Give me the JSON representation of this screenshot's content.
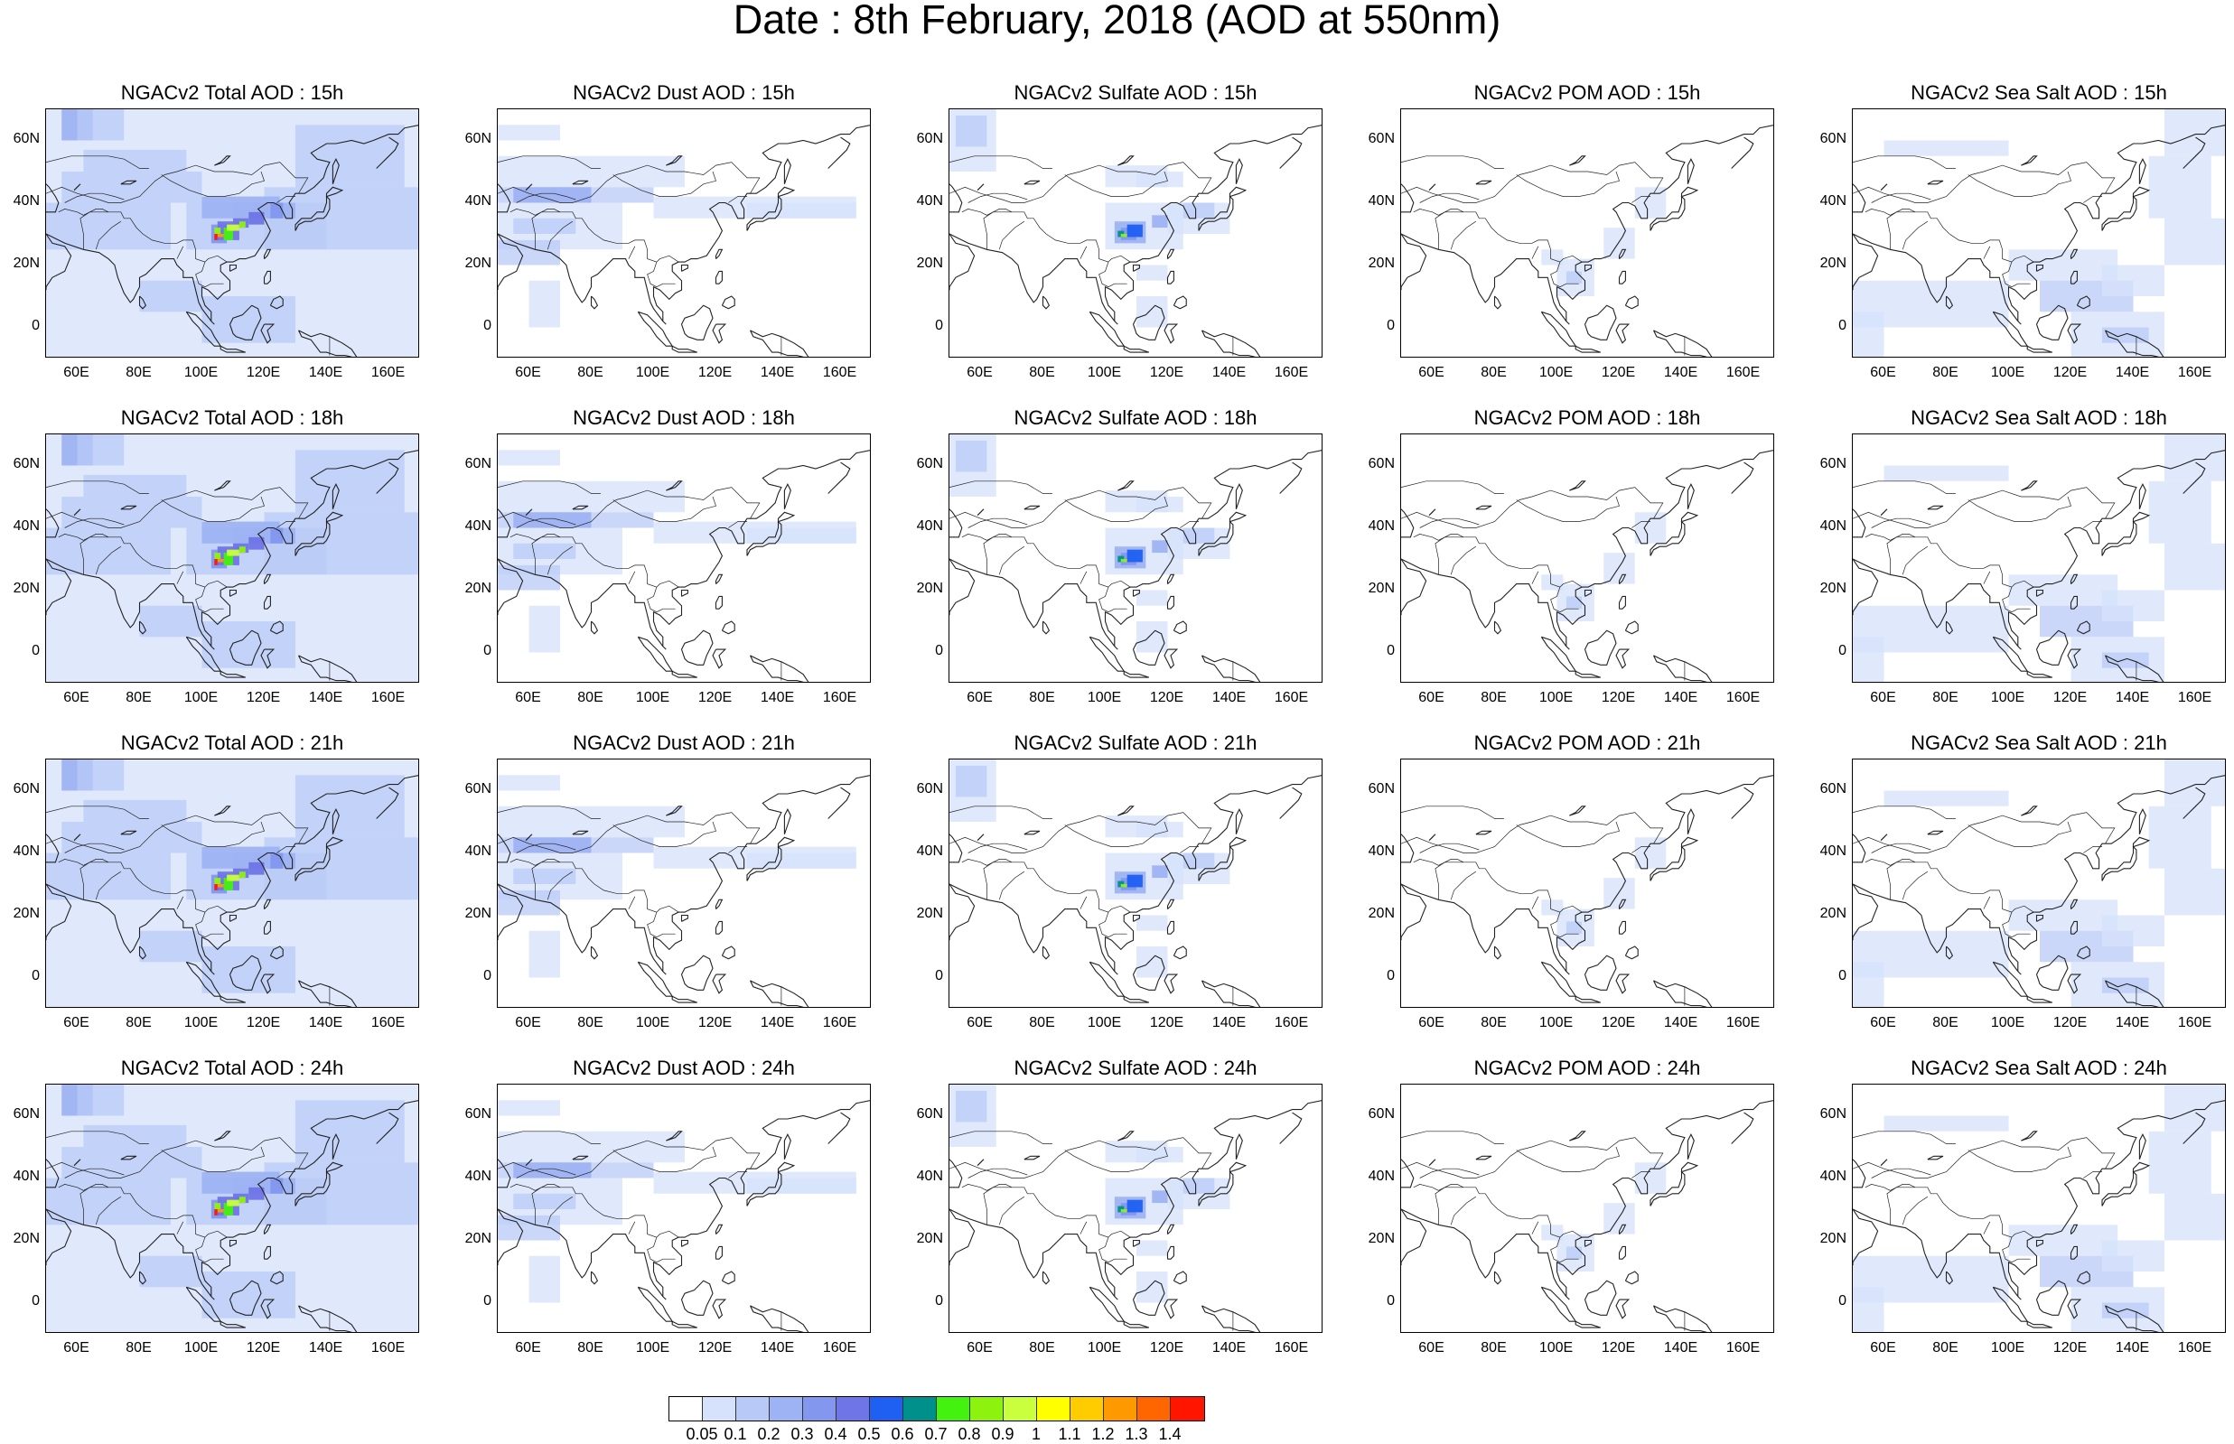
{
  "title": "Date : 8th February, 2018 (AOD at 550nm)",
  "map": {
    "lon_range": [
      50,
      170
    ],
    "lat_range": [
      -10,
      70
    ],
    "lat_ticks": [
      "60N",
      "40N",
      "20N",
      "0"
    ],
    "lon_ticks": [
      "60E",
      "80E",
      "100E",
      "120E",
      "140E",
      "160E"
    ]
  },
  "panels": [
    [
      {
        "title": "NGACv2 Total AOD : 15h",
        "species": "total"
      },
      {
        "title": "NGACv2 Dust AOD : 15h",
        "species": "dust"
      },
      {
        "title": "NGACv2 Sulfate AOD : 15h",
        "species": "sulfate"
      },
      {
        "title": "NGACv2 POM AOD : 15h",
        "species": "pom"
      },
      {
        "title": "NGACv2 Sea Salt AOD : 15h",
        "species": "seasalt"
      }
    ],
    [
      {
        "title": "NGACv2 Total AOD : 18h",
        "species": "total"
      },
      {
        "title": "NGACv2 Dust AOD : 18h",
        "species": "dust"
      },
      {
        "title": "NGACv2 Sulfate AOD : 18h",
        "species": "sulfate"
      },
      {
        "title": "NGACv2 POM AOD : 18h",
        "species": "pom"
      },
      {
        "title": "NGACv2 Sea Salt AOD : 18h",
        "species": "seasalt"
      }
    ],
    [
      {
        "title": "NGACv2 Total AOD : 21h",
        "species": "total"
      },
      {
        "title": "NGACv2 Dust AOD : 21h",
        "species": "dust"
      },
      {
        "title": "NGACv2 Sulfate AOD : 21h",
        "species": "sulfate"
      },
      {
        "title": "NGACv2 POM AOD : 21h",
        "species": "pom"
      },
      {
        "title": "NGACv2 Sea Salt AOD : 21h",
        "species": "seasalt"
      }
    ],
    [
      {
        "title": "NGACv2 Total AOD : 24h",
        "species": "total"
      },
      {
        "title": "NGACv2 Dust AOD : 24h",
        "species": "dust"
      },
      {
        "title": "NGACv2 Sulfate AOD : 24h",
        "species": "sulfate"
      },
      {
        "title": "NGACv2 POM AOD : 24h",
        "species": "pom"
      },
      {
        "title": "NGACv2 Sea Salt  AOD : 24h",
        "species": "seasalt"
      }
    ]
  ],
  "colorbar": {
    "levels": [
      "0.05",
      "0.1",
      "0.2",
      "0.3",
      "0.4",
      "0.5",
      "0.6",
      "0.7",
      "0.8",
      "0.9",
      "1",
      "1.1",
      "1.2",
      "1.3",
      "1.4"
    ],
    "colors": [
      "#ffffff",
      "#d6e1fb",
      "#b8c9f7",
      "#9eb3f3",
      "#8497ee",
      "#6f74e6",
      "#1f5ff2",
      "#00908c",
      "#43f20f",
      "#8ef20f",
      "#c9ff3c",
      "#ffff00",
      "#ffcc00",
      "#ff9900",
      "#ff6600",
      "#ff1500"
    ]
  }
}
